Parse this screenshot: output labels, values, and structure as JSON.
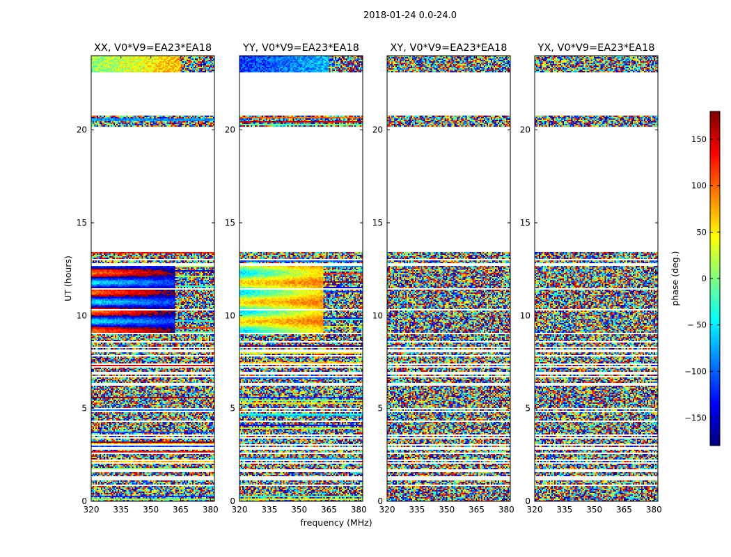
{
  "figure": {
    "suptitle": "2018-01-24 0.0-24.0",
    "xlabel": "frequency (MHz)",
    "ylabel": "UT (hours)"
  },
  "chart_data": {
    "type": "heatmap",
    "title": "2018-01-24 0.0-24.0",
    "xlabel": "frequency (MHz)",
    "ylabel": "UT (hours)",
    "xlim": [
      320,
      382
    ],
    "ylim": [
      0,
      24
    ],
    "x_ticks": [
      320,
      335,
      350,
      365,
      380
    ],
    "y_ticks": [
      0,
      5,
      10,
      15,
      20
    ],
    "colorbar": {
      "label": "phase (deg.)",
      "range": [
        -180,
        180
      ],
      "ticks": [
        150,
        100,
        50,
        0,
        -50,
        -100,
        -150
      ],
      "tick_labels": [
        "150",
        "100",
        "50",
        "0",
        "− 50",
        "−100",
        "−150"
      ],
      "colormap": "jet",
      "colors": [
        "#00007f",
        "#0000ff",
        "#007fff",
        "#00ffff",
        "#7fff7f",
        "#ffff00",
        "#ff7f00",
        "#ff0000",
        "#7f0000"
      ]
    },
    "panels": [
      {
        "name": "XX",
        "title": "XX, V0*V9=EA23*EA18"
      },
      {
        "name": "YY",
        "title": "YY, V0*V9=EA23*EA18"
      },
      {
        "name": "XY",
        "title": "XY, V0*V9=EA23*EA18"
      },
      {
        "name": "YX",
        "title": "YX, V0*V9=EA23*EA18"
      }
    ],
    "empty_time_ranges_hours": [
      [
        20.8,
        23.1
      ],
      [
        13.4,
        20.2
      ]
    ],
    "coherent_phase_block": {
      "ut_start": 9.0,
      "ut_end": 12.7,
      "freq_end_mhz": 362,
      "panels": [
        "XX",
        "YY"
      ],
      "xx_phase_deg": -160,
      "yy_phase_deg": 0
    }
  }
}
